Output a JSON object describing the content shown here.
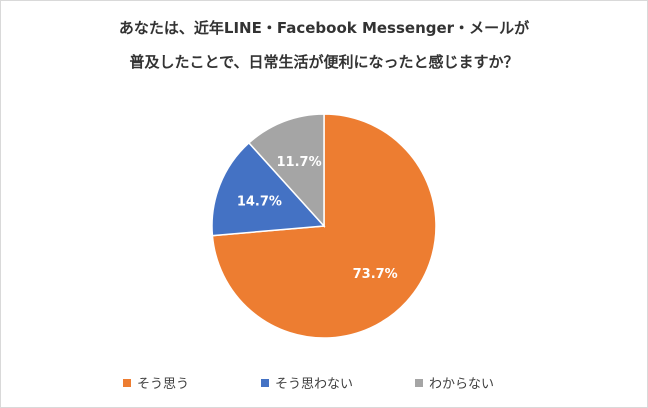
{
  "chart_data": {
    "type": "pie",
    "title_lines": [
      "あなたは、近年LINE・Facebook Messenger・メールが",
      "普及したことで、日常生活が便利になったと感じますか？"
    ],
    "categories": [
      "そう思う",
      "そう思わない",
      "わからない"
    ],
    "values": [
      73.7,
      14.7,
      11.7
    ],
    "value_labels": [
      "73.7%",
      "14.7%",
      "11.7%"
    ],
    "colors": [
      "#ED7D31",
      "#4472C4",
      "#A5A5A5"
    ],
    "legend_position": "bottom"
  }
}
